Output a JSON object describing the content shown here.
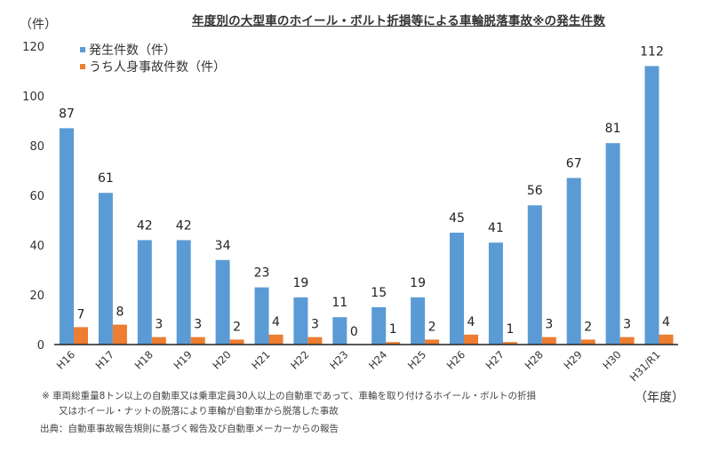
{
  "chart_data": {
    "type": "bar",
    "title": "年度別の大型車のホイール・ボルト折損等による車輪脱落事故※の発生件数",
    "ylabel": "（件）",
    "xlabel": "（年度）",
    "ylim": [
      0,
      120
    ],
    "yticks": [
      0,
      20,
      40,
      60,
      80,
      100,
      120
    ],
    "grid": false,
    "legend_position": "top-left",
    "categories": [
      "H16",
      "H17",
      "H18",
      "H19",
      "H20",
      "H21",
      "H22",
      "H23",
      "H24",
      "H25",
      "H26",
      "H27",
      "H28",
      "H29",
      "H30",
      "H31/R1"
    ],
    "series": [
      {
        "name": "発生件数（件）",
        "color": "#5b9bd5",
        "values": [
          87,
          61,
          42,
          42,
          34,
          23,
          19,
          11,
          15,
          19,
          45,
          41,
          56,
          67,
          81,
          112
        ]
      },
      {
        "name": "うち人身事故件数（件）",
        "color": "#ed7d31",
        "values": [
          7,
          8,
          3,
          3,
          2,
          4,
          3,
          0,
          1,
          2,
          4,
          1,
          3,
          2,
          3,
          4
        ]
      }
    ]
  },
  "notes": {
    "line1": "※  車両総重量8トン以上の自動車又は乗車定員30人以上の自動車であって、車輪を取り付けるホイール・ボルトの折損",
    "line2": "又はホイール・ナットの脱落により車輪が自動車から脱落した事故",
    "source": "出典：自動車事故報告規則に基づく報告及び自動車メーカーからの報告"
  }
}
